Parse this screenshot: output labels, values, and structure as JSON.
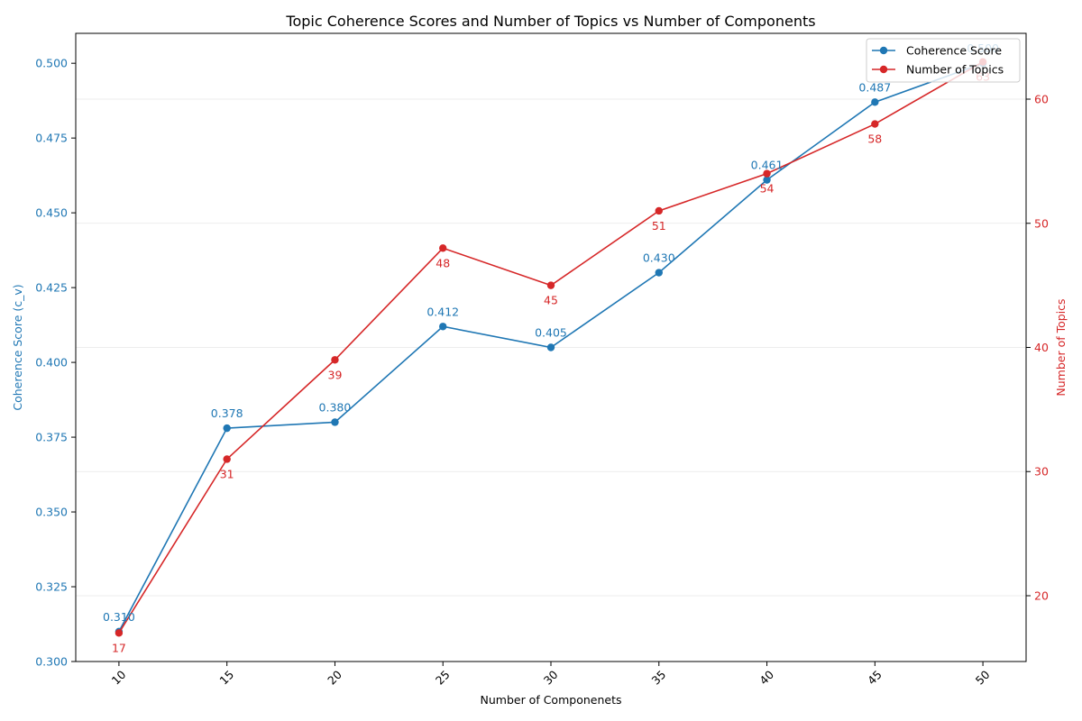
{
  "chart_data": {
    "type": "line",
    "title": "Topic Coherence Scores and Number of Topics vs Number of Components",
    "xlabel": "Number of Componenets",
    "x": [
      10,
      15,
      20,
      25,
      30,
      35,
      40,
      45,
      50
    ],
    "x_tick_labels": [
      "10",
      "15",
      "20",
      "25",
      "30",
      "35",
      "40",
      "45",
      "50"
    ],
    "y_left": {
      "label": "Coherence Score (c_v)",
      "lim": [
        0.3,
        0.51
      ],
      "ticks": [
        "0.300",
        "0.325",
        "0.350",
        "0.375",
        "0.400",
        "0.425",
        "0.450",
        "0.475",
        "0.500"
      ],
      "tick_values": [
        0.3,
        0.325,
        0.35,
        0.375,
        0.4,
        0.425,
        0.45,
        0.475,
        0.5
      ],
      "color": "#1f77b4"
    },
    "y_right": {
      "label": "Number of Topics",
      "lim": [
        14.7,
        65.3
      ],
      "ticks": [
        "20",
        "30",
        "40",
        "50",
        "60"
      ],
      "tick_values": [
        20,
        30,
        40,
        50,
        60
      ],
      "color": "#d62728"
    },
    "series": [
      {
        "name": "Coherence Score",
        "axis": "left",
        "color": "#1f77b4",
        "values": [
          0.31,
          0.378,
          0.38,
          0.412,
          0.405,
          0.43,
          0.461,
          0.487,
          0.5
        ],
        "labels": [
          "0.310",
          "0.378",
          "0.380",
          "0.412",
          "0.405",
          "0.430",
          "0.461",
          "0.487",
          "0.500"
        ]
      },
      {
        "name": "Number of Topics",
        "axis": "right",
        "color": "#d62728",
        "values": [
          17,
          31,
          39,
          48,
          45,
          51,
          54,
          58,
          63
        ],
        "labels": [
          "17",
          "31",
          "39",
          "48",
          "45",
          "51",
          "54",
          "58",
          "63"
        ]
      }
    ],
    "grid": true,
    "legend_position": "top-right"
  }
}
